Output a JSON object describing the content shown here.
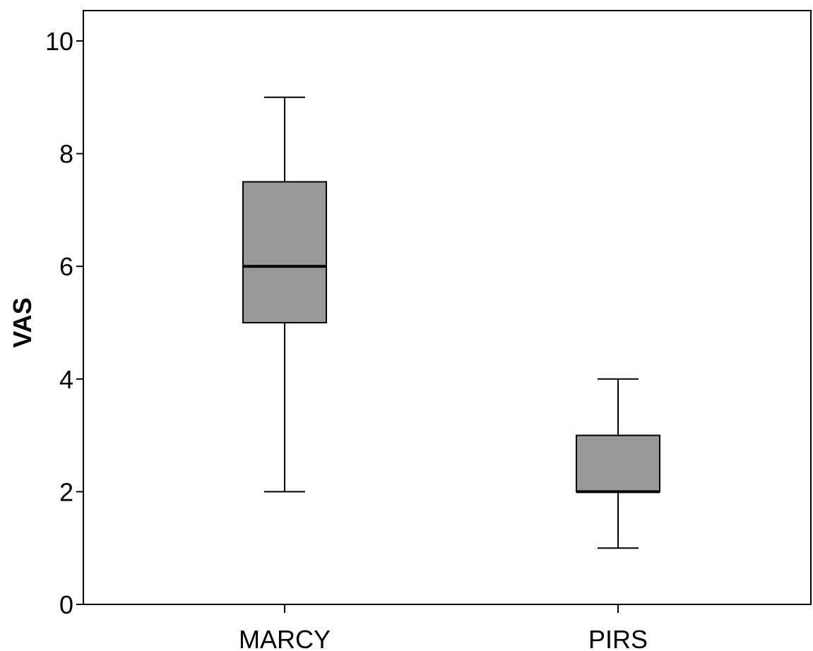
{
  "chart_data": {
    "type": "boxplot",
    "title": "",
    "xlabel": "",
    "ylabel": "VAS",
    "ylim": [
      0,
      10.5
    ],
    "yticks": [
      "0",
      "2",
      "4",
      "6",
      "8",
      "10"
    ],
    "grid": false,
    "box_fill_color": "#999999",
    "line_color": "#000000",
    "categories": [
      "MARCY",
      "PIRS"
    ],
    "boxes": [
      {
        "category": "MARCY",
        "whisker_low": 2,
        "q1": 5,
        "median": 6,
        "q3": 7.5,
        "whisker_high": 9
      },
      {
        "category": "PIRS",
        "whisker_low": 1,
        "q1": 2,
        "median": 2,
        "q3": 3,
        "whisker_high": 4
      }
    ]
  }
}
